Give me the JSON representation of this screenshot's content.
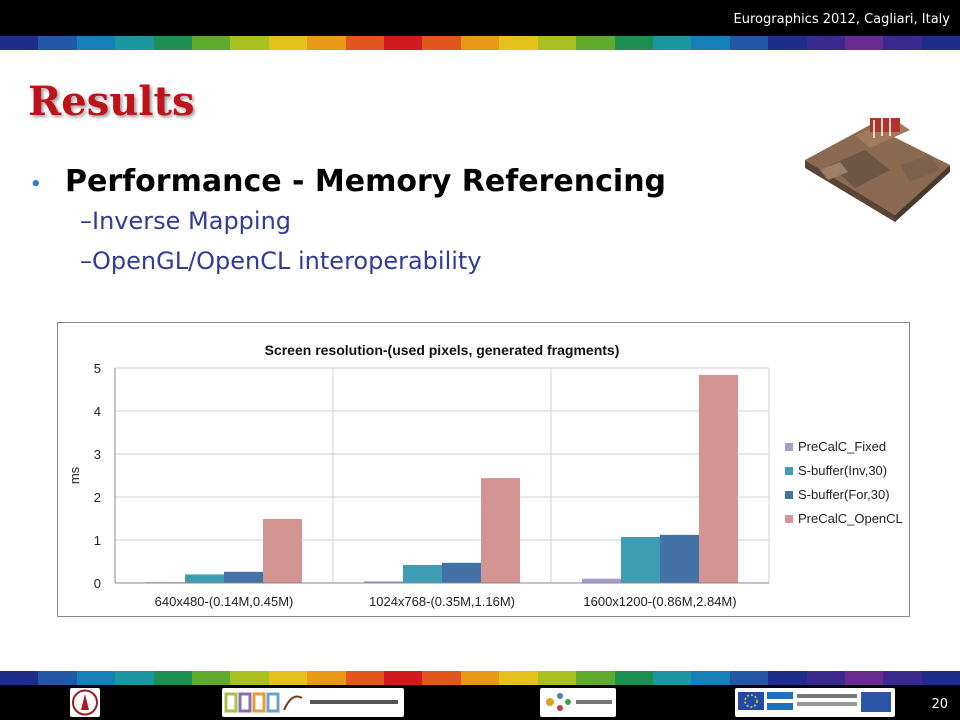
{
  "header": {
    "conference": "Eurographics 2012, Cagliari, Italy"
  },
  "slide": {
    "title": "Results",
    "bullet": "Performance - Memory Referencing",
    "subitems": [
      "–Inverse Mapping",
      "–OpenGL/OpenCL interoperability"
    ],
    "page_number": "20"
  },
  "colors": {
    "title": "#c0121b",
    "subitem": "#303c96",
    "stripe": [
      "#1f2d8a",
      "#2357a5",
      "#1780b8",
      "#1b95a0",
      "#1e8f52",
      "#5faa2c",
      "#a9bf1f",
      "#e4c21a",
      "#e89a17",
      "#e0561c",
      "#d21a1e",
      "#e0561c",
      "#e89a17",
      "#e4c21a",
      "#a9bf1f",
      "#5faa2c",
      "#1e8f52",
      "#1b95a0",
      "#1780b8",
      "#2357a5",
      "#1f2d8a",
      "#3b2a8e",
      "#6a2a8e",
      "#3b2a8e",
      "#1f2d8a"
    ]
  },
  "footer": {
    "logos": [
      "university-seal-icon",
      "cgrg-logo",
      "network-logo",
      "eu-nsrf-logo"
    ]
  },
  "chart_data": {
    "type": "bar",
    "title": "Screen resolution-(used pixels, generated fragments)",
    "xlabel": "",
    "ylabel": "ms",
    "ylim": [
      0,
      5
    ],
    "yticks": [
      0,
      1,
      2,
      3,
      4,
      5
    ],
    "grid": true,
    "legend": "right",
    "categories": [
      "640x480-(0.14M,0.45M)",
      "1024x768-(0.35M,1.16M)",
      "1600x1200-(0.86M,2.84M)"
    ],
    "series": [
      {
        "name": "PreCalC_Fixed",
        "color": "#a99bc9",
        "values": [
          0.02,
          0.04,
          0.1
        ]
      },
      {
        "name": "S-buffer(Inv,30)",
        "color": "#3f9db3",
        "values": [
          0.2,
          0.42,
          1.07
        ]
      },
      {
        "name": "S-buffer(For,30)",
        "color": "#4471a6",
        "values": [
          0.26,
          0.47,
          1.12
        ]
      },
      {
        "name": "PreCalC_OpenCL",
        "color": "#d49492",
        "values": [
          1.49,
          2.44,
          4.84
        ]
      }
    ]
  }
}
